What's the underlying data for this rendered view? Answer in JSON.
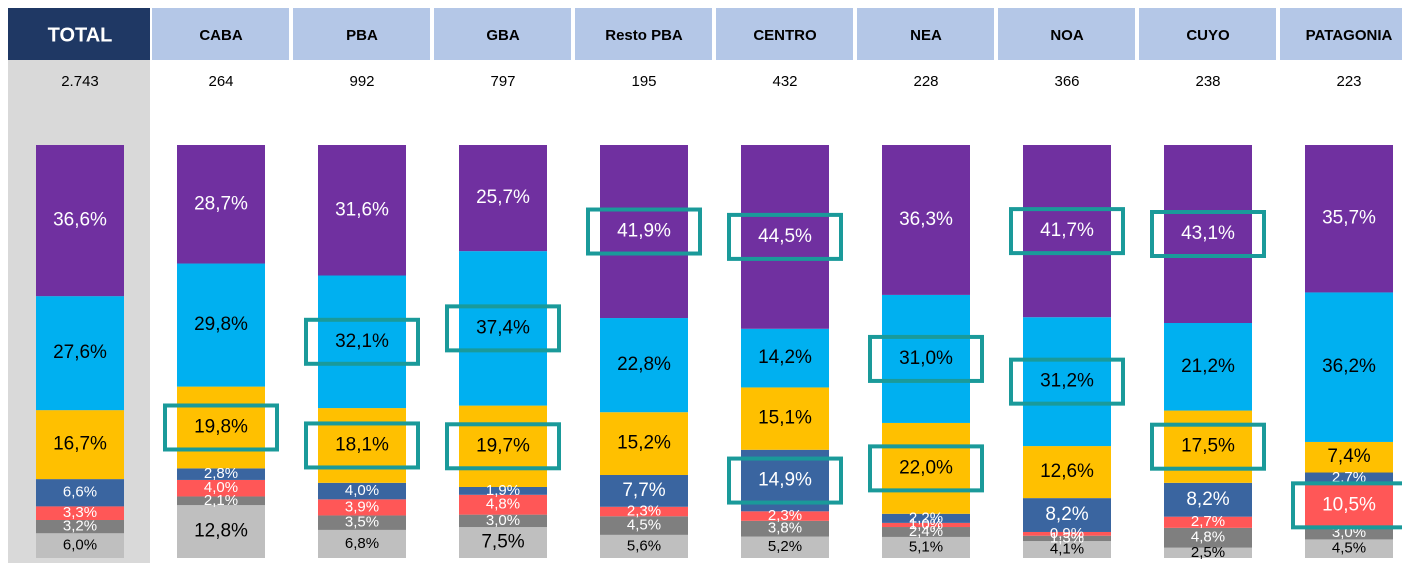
{
  "chart_data": {
    "type": "stacked_bar",
    "categories": [
      "TOTAL",
      "CABA",
      "PBA",
      "GBA",
      "Resto PBA",
      "CENTRO",
      "NEA",
      "NOA",
      "CUYO",
      "PATAGONIA"
    ],
    "counts": [
      2743,
      264,
      992,
      797,
      195,
      432,
      228,
      366,
      238,
      223
    ],
    "count_labels": [
      "2.743",
      "264",
      "992",
      "797",
      "195",
      "432",
      "228",
      "366",
      "238",
      "223"
    ],
    "ylim": [
      0,
      100
    ],
    "series": [
      {
        "color": "#bfbfbf",
        "values": [
          6.0,
          12.8,
          6.8,
          7.5,
          5.6,
          5.2,
          5.1,
          4.1,
          2.5,
          4.5
        ],
        "value_labels": [
          "6,0%",
          "12,8%",
          "6,8%",
          "7,5%",
          "5,6%",
          "5,2%",
          "5,1%",
          "4,1%",
          "2,5%",
          "4,5%"
        ]
      },
      {
        "color": "#7f7f7f",
        "values": [
          3.2,
          2.1,
          3.5,
          3.0,
          4.5,
          3.8,
          2.4,
          1.3,
          4.8,
          3.0
        ],
        "value_labels": [
          "3,2%",
          "2,1%",
          "3,5%",
          "3,0%",
          "4,5%",
          "3,8%",
          "2,4%",
          "1,3%",
          "4,8%",
          "3,0%"
        ]
      },
      {
        "color": "#ff5757",
        "values": [
          3.3,
          4.0,
          3.9,
          4.8,
          2.3,
          2.3,
          1.0,
          0.9,
          2.7,
          10.5
        ],
        "value_labels": [
          "3,3%",
          "4,0%",
          "3,9%",
          "4,8%",
          "2,3%",
          "2,3%",
          "1,0%",
          "0,9%",
          "2,7%",
          "10,5%"
        ]
      },
      {
        "color": "#3a65a0",
        "values": [
          6.6,
          2.8,
          4.0,
          1.9,
          7.7,
          14.9,
          2.2,
          8.2,
          8.2,
          2.7
        ],
        "value_labels": [
          "6,6%",
          "2,8%",
          "4,0%",
          "1,9%",
          "7,7%",
          "14,9%",
          "2,2%",
          "8,2%",
          "8,2%",
          "2,7%"
        ]
      },
      {
        "color": "#ffc000",
        "values": [
          16.7,
          19.8,
          18.1,
          19.7,
          15.2,
          15.1,
          22.0,
          12.6,
          17.5,
          7.4
        ],
        "value_labels": [
          "16,7%",
          "19,8%",
          "18,1%",
          "19,7%",
          "15,2%",
          "15,1%",
          "22,0%",
          "12,6%",
          "17,5%",
          "7,4%"
        ]
      },
      {
        "color": "#00b0f0",
        "values": [
          27.6,
          29.8,
          32.1,
          37.4,
          22.8,
          14.2,
          31.0,
          31.2,
          21.2,
          36.2
        ],
        "value_labels": [
          "27,6%",
          "29,8%",
          "32,1%",
          "37,4%",
          "22,8%",
          "14,2%",
          "31,0%",
          "31,2%",
          "21,2%",
          "36,2%"
        ]
      },
      {
        "color": "#7030a0",
        "values": [
          36.6,
          28.7,
          31.6,
          25.7,
          41.9,
          44.5,
          36.3,
          41.7,
          43.1,
          35.7
        ],
        "value_labels": [
          "36,6%",
          "28,7%",
          "31,6%",
          "25,7%",
          "41,9%",
          "44,5%",
          "36,3%",
          "41,7%",
          "43,1%",
          "35,7%"
        ]
      }
    ],
    "highlight_color": "#1a9a9a",
    "highlights": [
      [
        4,
        1
      ],
      [
        5,
        2
      ],
      [
        4,
        2
      ],
      [
        5,
        3
      ],
      [
        4,
        3
      ],
      [
        6,
        4
      ],
      [
        6,
        5
      ],
      [
        3,
        5
      ],
      [
        5,
        6
      ],
      [
        4,
        6
      ],
      [
        6,
        7
      ],
      [
        5,
        7
      ],
      [
        6,
        8
      ],
      [
        4,
        8
      ],
      [
        2,
        9
      ]
    ]
  }
}
